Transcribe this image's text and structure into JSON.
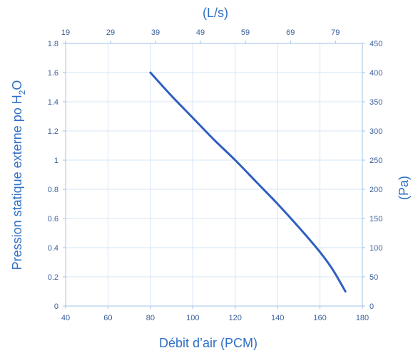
{
  "chart_data": {
    "type": "line",
    "xlabel": "Débit d’air (PCM)",
    "ylabel_left_main": "Pression statique externe po H",
    "ylabel_left_sub": "2",
    "ylabel_left_tail": "O",
    "x2label": "(L/s)",
    "y2label": "(Pa)",
    "xlim": [
      40,
      180
    ],
    "ylim": [
      0,
      1.8
    ],
    "x_ticks": [
      "40",
      "60",
      "80",
      "100",
      "120",
      "140",
      "160",
      "180"
    ],
    "x_tick_values": [
      40,
      60,
      80,
      100,
      120,
      140,
      160,
      180
    ],
    "y_ticks": [
      "0",
      "0.2",
      "0.4",
      "0.6",
      "0.8",
      "1",
      "1.2",
      "1.4",
      "1.6",
      "1.8"
    ],
    "y_tick_values": [
      0,
      0.2,
      0.4,
      0.6,
      0.8,
      1.0,
      1.2,
      1.4,
      1.6,
      1.8
    ],
    "x2_ticks": [
      "19",
      "29",
      "39",
      "49",
      "59",
      "69",
      "79"
    ],
    "x2_tick_pcm": [
      40,
      61.2,
      82.4,
      103.6,
      124.8,
      146.1,
      167.3
    ],
    "y2_ticks": [
      "0",
      "50",
      "100",
      "150",
      "200",
      "250",
      "300",
      "350",
      "400",
      "450"
    ],
    "y2_tick_values_inh2o": [
      0,
      0.2,
      0.4,
      0.6,
      0.8,
      1.0,
      1.2,
      1.4,
      1.6,
      1.8
    ],
    "grid": true,
    "series": [
      {
        "x": [
          80,
          90,
          100,
          110,
          120,
          130,
          140,
          150,
          160,
          166,
          172
        ],
        "y": [
          1.6,
          1.44,
          1.29,
          1.14,
          1.0,
          0.85,
          0.7,
          0.54,
          0.37,
          0.25,
          0.1
        ],
        "color": "#2f5fc0"
      }
    ]
  }
}
